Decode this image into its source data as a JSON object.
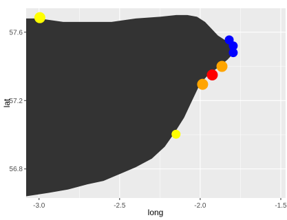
{
  "chart_data": {
    "type": "scatter",
    "xlabel": "long",
    "ylabel": "lat",
    "xlim": [
      -3.08,
      -1.47
    ],
    "ylim": [
      56.63,
      57.74
    ],
    "x_ticks": [
      -3.0,
      -2.5,
      -2.0,
      -1.5
    ],
    "x_tick_labels": [
      "-3.0",
      "-2.5",
      "-2.0",
      "-1.5"
    ],
    "y_ticks": [
      56.8,
      57.2,
      57.6
    ],
    "y_tick_labels": [
      "56.8",
      "57.2",
      "57.6"
    ],
    "grid": true,
    "panel_background": "#ebebeb",
    "land_color": "#333333",
    "land_outline": [
      [
        -3.08,
        57.68
      ],
      [
        -3.0,
        57.68
      ],
      [
        -2.85,
        57.66
      ],
      [
        -2.7,
        57.66
      ],
      [
        -2.55,
        57.66
      ],
      [
        -2.4,
        57.68
      ],
      [
        -2.25,
        57.69
      ],
      [
        -2.15,
        57.7
      ],
      [
        -2.08,
        57.7
      ],
      [
        -2.02,
        57.69
      ],
      [
        -1.97,
        57.66
      ],
      [
        -1.93,
        57.62
      ],
      [
        -1.89,
        57.58
      ],
      [
        -1.84,
        57.55
      ],
      [
        -1.8,
        57.51
      ],
      [
        -1.8,
        57.47
      ],
      [
        -1.83,
        57.44
      ],
      [
        -1.88,
        57.4
      ],
      [
        -1.95,
        57.35
      ],
      [
        -2.0,
        57.3
      ],
      [
        -2.03,
        57.24
      ],
      [
        -2.06,
        57.18
      ],
      [
        -2.1,
        57.1
      ],
      [
        -2.16,
        57.01
      ],
      [
        -2.22,
        56.93
      ],
      [
        -2.3,
        56.86
      ],
      [
        -2.4,
        56.81
      ],
      [
        -2.5,
        56.77
      ],
      [
        -2.6,
        56.73
      ],
      [
        -2.7,
        56.71
      ],
      [
        -2.82,
        56.68
      ],
      [
        -2.94,
        56.66
      ],
      [
        -3.08,
        56.64
      ]
    ],
    "points": [
      {
        "x": -2.995,
        "y": 57.685,
        "color": "#ffff00",
        "size": "large"
      },
      {
        "x": -2.15,
        "y": 57.003,
        "color": "#ffff00",
        "size": "small"
      },
      {
        "x": -1.985,
        "y": 57.295,
        "color": "#ffa500",
        "size": "large"
      },
      {
        "x": -1.925,
        "y": 57.35,
        "color": "#ff0000",
        "size": "large"
      },
      {
        "x": -1.865,
        "y": 57.4,
        "color": "#ffa500",
        "size": "large"
      },
      {
        "x": -1.82,
        "y": 57.555,
        "color": "#0000ff",
        "size": "small"
      },
      {
        "x": -1.795,
        "y": 57.52,
        "color": "#0000ff",
        "size": "small"
      },
      {
        "x": -1.795,
        "y": 57.48,
        "color": "#0000ff",
        "size": "small"
      }
    ]
  }
}
